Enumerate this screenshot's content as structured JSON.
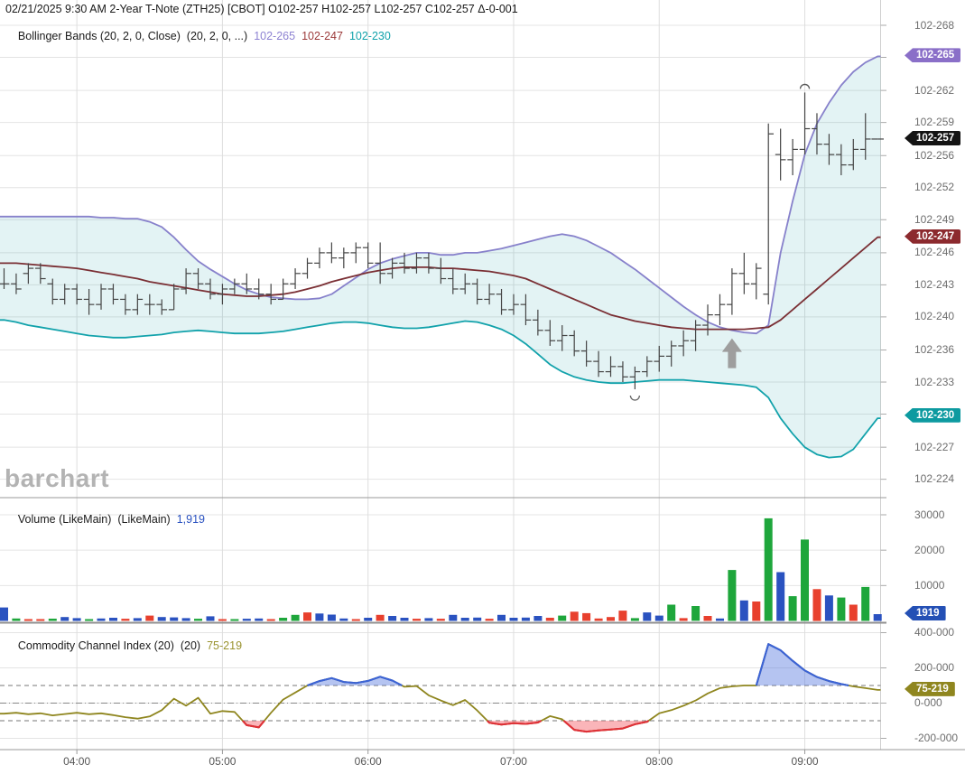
{
  "header": {
    "line1": "02/21/2025 9:30 AM 2-Year T-Note (ZTH25) [CBOT] O102-257 H102-257 L102-257 C102-257 Δ-0-001"
  },
  "legends": {
    "bollinger": {
      "label": "Bollinger Bands (20, 2, 0, Close)  (20, 2, 0, ...)",
      "upper": "102-265",
      "middle": "102-247",
      "lower": "102-230"
    },
    "volume": {
      "label": "Volume (LikeMain)  (LikeMain)",
      "value": "1,919"
    },
    "cci": {
      "label": "Commodity Channel Index (20)  (20)",
      "value": "75-219"
    }
  },
  "watermark": "barchart",
  "colors": {
    "band_upper": "#8781cb",
    "band_middle": "#7a2f34",
    "band_lower": "#12a2ab",
    "band_fill": "rgba(26,160,166,0.12)",
    "ohlc_bar": "#444444",
    "legend_upper": "#8d82d2",
    "legend_middle": "#9c3a3a",
    "legend_lower": "#12a2ab",
    "legend_volume": "#2a52c0",
    "legend_cci": "#99922e",
    "vol_up": "#1ea63b",
    "vol_down": "#e8402d",
    "vol_neutral": "#2a52c0",
    "cci_line": "#8f861f",
    "cci_above": "#3b63d6",
    "cci_below": "#e03038",
    "cci_fill_above": "rgba(90,125,225,0.45)",
    "cci_fill_below": "rgba(245,90,100,0.45)",
    "badge_upper": "#8a6fc8",
    "badge_last": "#141414",
    "badge_middle": "#8c2a2e",
    "badge_lower": "#0d9aa0",
    "badge_volume": "#2450b5",
    "badge_cci": "#8f861f",
    "marker_gray": "#9e9e9e"
  },
  "chart_data": {
    "type": "ohlc",
    "symbol": "2-Year T-Note (ZTH25) [CBOT]",
    "interval_minutes": 5,
    "x_axis": {
      "hour_labels": [
        {
          "label": "04:00",
          "i": 6
        },
        {
          "label": "05:00",
          "i": 18
        },
        {
          "label": "06:00",
          "i": 30
        },
        {
          "label": "07:00",
          "i": 42
        },
        {
          "label": "08:00",
          "i": 54
        },
        {
          "label": "09:00",
          "i": 66
        }
      ]
    },
    "price_pane": {
      "unit": "32nds above 102 (24.3 = 102-243)",
      "y_labels": [
        {
          "label": "102-268",
          "v": 26.8
        },
        {
          "label": "102-262",
          "v": 26.17
        },
        {
          "label": "102-259",
          "v": 25.86
        },
        {
          "label": "102-256",
          "v": 25.54
        },
        {
          "label": "102-252",
          "v": 25.23
        },
        {
          "label": "102-249",
          "v": 24.92
        },
        {
          "label": "102-246",
          "v": 24.6
        },
        {
          "label": "102-243",
          "v": 24.29
        },
        {
          "label": "102-240",
          "v": 23.98
        },
        {
          "label": "102-236",
          "v": 23.66
        },
        {
          "label": "102-233",
          "v": 23.35
        },
        {
          "label": "102-227",
          "v": 22.72
        },
        {
          "label": "102-224",
          "v": 22.41
        }
      ],
      "gridline_values": [
        26.8,
        26.49,
        26.17,
        25.86,
        25.54,
        25.23,
        24.92,
        24.6,
        24.29,
        23.98,
        23.66,
        23.35,
        23.04,
        22.72,
        22.41
      ],
      "badges": [
        {
          "label": "102-265",
          "v": 26.5,
          "color_key": "badge_upper"
        },
        {
          "label": "102-257",
          "v": 25.7,
          "color_key": "badge_last"
        },
        {
          "label": "102-247",
          "v": 24.75,
          "color_key": "badge_middle"
        },
        {
          "label": "102-230",
          "v": 23.02,
          "color_key": "badge_lower"
        }
      ],
      "bars": [
        [
          24.3,
          24.45,
          24.25,
          24.3
        ],
        [
          24.3,
          24.4,
          24.2,
          24.25
        ],
        [
          24.4,
          24.5,
          24.3,
          24.45
        ],
        [
          24.45,
          24.5,
          24.3,
          24.35
        ],
        [
          24.3,
          24.35,
          24.1,
          24.15
        ],
        [
          24.15,
          24.3,
          24.1,
          24.25
        ],
        [
          24.25,
          24.3,
          24.1,
          24.15
        ],
        [
          24.15,
          24.25,
          24.0,
          24.1
        ],
        [
          24.1,
          24.3,
          24.05,
          24.25
        ],
        [
          24.25,
          24.3,
          24.1,
          24.15
        ],
        [
          24.15,
          24.2,
          24.0,
          24.05
        ],
        [
          24.05,
          24.2,
          24.0,
          24.15
        ],
        [
          24.1,
          24.2,
          24.0,
          24.1
        ],
        [
          24.1,
          24.15,
          24.0,
          24.05
        ],
        [
          24.05,
          24.3,
          24.05,
          24.25
        ],
        [
          24.25,
          24.45,
          24.2,
          24.4
        ],
        [
          24.4,
          24.45,
          24.25,
          24.3
        ],
        [
          24.3,
          24.35,
          24.15,
          24.2
        ],
        [
          24.2,
          24.3,
          24.1,
          24.25
        ],
        [
          24.25,
          24.35,
          24.2,
          24.3
        ],
        [
          24.3,
          24.4,
          24.2,
          24.25
        ],
        [
          24.25,
          24.35,
          24.15,
          24.2
        ],
        [
          24.2,
          24.3,
          24.1,
          24.15
        ],
        [
          24.15,
          24.35,
          24.15,
          24.3
        ],
        [
          24.3,
          24.45,
          24.25,
          24.4
        ],
        [
          24.4,
          24.55,
          24.35,
          24.5
        ],
        [
          24.5,
          24.65,
          24.45,
          24.6
        ],
        [
          24.6,
          24.7,
          24.5,
          24.55
        ],
        [
          24.55,
          24.65,
          24.45,
          24.6
        ],
        [
          24.6,
          24.7,
          24.5,
          24.65
        ],
        [
          24.65,
          24.7,
          24.45,
          24.5
        ],
        [
          24.5,
          24.7,
          24.3,
          24.4
        ],
        [
          24.4,
          24.55,
          24.35,
          24.5
        ],
        [
          24.5,
          24.6,
          24.4,
          24.45
        ],
        [
          24.45,
          24.6,
          24.4,
          24.55
        ],
        [
          24.55,
          24.6,
          24.4,
          24.45
        ],
        [
          24.45,
          24.55,
          24.3,
          24.35
        ],
        [
          24.35,
          24.45,
          24.2,
          24.25
        ],
        [
          24.25,
          24.4,
          24.2,
          24.3
        ],
        [
          24.3,
          24.35,
          24.1,
          24.15
        ],
        [
          24.15,
          24.3,
          24.1,
          24.2
        ],
        [
          24.2,
          24.25,
          24.0,
          24.05
        ],
        [
          24.05,
          24.2,
          24.0,
          24.1
        ],
        [
          24.1,
          24.2,
          23.9,
          23.95
        ],
        [
          23.95,
          24.05,
          23.8,
          23.85
        ],
        [
          23.85,
          23.95,
          23.7,
          23.75
        ],
        [
          23.75,
          23.9,
          23.65,
          23.8
        ],
        [
          23.8,
          23.85,
          23.6,
          23.65
        ],
        [
          23.65,
          23.75,
          23.5,
          23.55
        ],
        [
          23.55,
          23.65,
          23.4,
          23.45
        ],
        [
          23.45,
          23.6,
          23.4,
          23.5
        ],
        [
          23.5,
          23.55,
          23.35,
          23.4
        ],
        [
          23.4,
          23.5,
          23.28,
          23.45
        ],
        [
          23.45,
          23.6,
          23.4,
          23.55
        ],
        [
          23.55,
          23.7,
          23.45,
          23.6
        ],
        [
          23.6,
          23.75,
          23.5,
          23.7
        ],
        [
          23.7,
          23.85,
          23.6,
          23.75
        ],
        [
          23.75,
          23.95,
          23.65,
          23.9
        ],
        [
          23.9,
          24.1,
          23.8,
          24.0
        ],
        [
          24.0,
          24.2,
          23.9,
          24.1
        ],
        [
          24.1,
          24.45,
          24.0,
          24.4
        ],
        [
          24.4,
          24.6,
          24.2,
          24.3
        ],
        [
          24.3,
          24.5,
          24.15,
          24.45
        ],
        [
          24.2,
          25.85,
          24.1,
          25.75
        ],
        [
          25.55,
          25.8,
          25.3,
          25.5
        ],
        [
          25.5,
          25.7,
          25.35,
          25.6
        ],
        [
          25.6,
          26.15,
          25.55,
          25.8
        ],
        [
          25.8,
          25.95,
          25.55,
          25.65
        ],
        [
          25.65,
          25.75,
          25.45,
          25.55
        ],
        [
          25.55,
          25.65,
          25.35,
          25.45
        ],
        [
          25.45,
          25.7,
          25.4,
          25.6
        ],
        [
          25.6,
          25.95,
          25.5,
          25.7
        ],
        [
          25.7,
          25.7,
          25.7,
          25.7
        ]
      ],
      "bollinger_upper": [
        24.95,
        24.95,
        24.95,
        24.95,
        24.95,
        24.95,
        24.95,
        24.95,
        24.94,
        24.94,
        24.93,
        24.93,
        24.9,
        24.85,
        24.75,
        24.63,
        24.52,
        24.44,
        24.37,
        24.3,
        24.24,
        24.2,
        24.17,
        24.16,
        24.15,
        24.15,
        24.16,
        24.2,
        24.28,
        24.36,
        24.44,
        24.5,
        24.54,
        24.57,
        24.6,
        24.6,
        24.58,
        24.58,
        24.6,
        24.6,
        24.62,
        24.64,
        24.67,
        24.7,
        24.73,
        24.76,
        24.78,
        24.76,
        24.72,
        24.66,
        24.6,
        24.52,
        24.44,
        24.35,
        24.26,
        24.17,
        24.08,
        24.0,
        23.93,
        23.88,
        23.85,
        23.83,
        23.82,
        23.9,
        24.6,
        25.1,
        25.55,
        25.85,
        26.05,
        26.22,
        26.35,
        26.44,
        26.5
      ],
      "bollinger_middle": [
        24.5,
        24.5,
        24.49,
        24.48,
        24.47,
        24.46,
        24.45,
        24.43,
        24.41,
        24.39,
        24.37,
        24.35,
        24.32,
        24.3,
        24.28,
        24.26,
        24.24,
        24.22,
        24.2,
        24.19,
        24.18,
        24.18,
        24.19,
        24.2,
        24.22,
        24.25,
        24.28,
        24.32,
        24.35,
        24.38,
        24.41,
        24.43,
        24.45,
        24.46,
        24.46,
        24.46,
        24.45,
        24.45,
        24.44,
        24.43,
        24.42,
        24.4,
        24.38,
        24.35,
        24.3,
        24.25,
        24.2,
        24.15,
        24.1,
        24.05,
        24.0,
        23.97,
        23.94,
        23.92,
        23.9,
        23.88,
        23.87,
        23.86,
        23.86,
        23.86,
        23.86,
        23.86,
        23.87,
        23.88,
        23.95,
        24.05,
        24.15,
        24.25,
        24.35,
        24.45,
        24.55,
        24.65,
        24.75
      ],
      "bollinger_lower": [
        23.95,
        23.93,
        23.9,
        23.88,
        23.86,
        23.84,
        23.82,
        23.8,
        23.79,
        23.78,
        23.78,
        23.79,
        23.8,
        23.81,
        23.83,
        23.84,
        23.85,
        23.84,
        23.83,
        23.82,
        23.82,
        23.82,
        23.83,
        23.84,
        23.86,
        23.88,
        23.9,
        23.92,
        23.93,
        23.93,
        23.92,
        23.9,
        23.88,
        23.87,
        23.87,
        23.88,
        23.9,
        23.92,
        23.94,
        23.93,
        23.9,
        23.86,
        23.8,
        23.72,
        23.62,
        23.52,
        23.45,
        23.4,
        23.37,
        23.35,
        23.34,
        23.34,
        23.35,
        23.36,
        23.37,
        23.37,
        23.37,
        23.36,
        23.35,
        23.34,
        23.33,
        23.32,
        23.3,
        23.2,
        23.0,
        22.85,
        22.72,
        22.65,
        22.62,
        22.63,
        22.7,
        22.85,
        23.0
      ],
      "markers": [
        {
          "type": "circle-low",
          "i": 52
        },
        {
          "type": "arrow-up",
          "i": 60
        },
        {
          "type": "arc-high",
          "i": 66
        }
      ]
    },
    "volume_pane": {
      "y_labels": [
        {
          "label": "30000",
          "v": 30000
        },
        {
          "label": "20000",
          "v": 20000
        },
        {
          "label": "10000",
          "v": 10000
        }
      ],
      "badge": {
        "label": "1919",
        "v": 1919,
        "color_key": "badge_volume"
      },
      "bars": [
        [
          3800,
          "b"
        ],
        [
          700,
          "g"
        ],
        [
          500,
          "r"
        ],
        [
          450,
          "r"
        ],
        [
          650,
          "g"
        ],
        [
          1100,
          "b"
        ],
        [
          800,
          "b"
        ],
        [
          500,
          "g"
        ],
        [
          700,
          "b"
        ],
        [
          900,
          "b"
        ],
        [
          600,
          "r"
        ],
        [
          800,
          "b"
        ],
        [
          1500,
          "r"
        ],
        [
          1100,
          "b"
        ],
        [
          1000,
          "b"
        ],
        [
          800,
          "b"
        ],
        [
          600,
          "g"
        ],
        [
          1300,
          "b"
        ],
        [
          500,
          "r"
        ],
        [
          400,
          "g"
        ],
        [
          600,
          "b"
        ],
        [
          700,
          "b"
        ],
        [
          500,
          "r"
        ],
        [
          900,
          "g"
        ],
        [
          1700,
          "g"
        ],
        [
          2400,
          "r"
        ],
        [
          2100,
          "b"
        ],
        [
          1800,
          "b"
        ],
        [
          700,
          "b"
        ],
        [
          500,
          "r"
        ],
        [
          900,
          "b"
        ],
        [
          1700,
          "r"
        ],
        [
          1400,
          "b"
        ],
        [
          900,
          "b"
        ],
        [
          600,
          "r"
        ],
        [
          800,
          "b"
        ],
        [
          600,
          "r"
        ],
        [
          1700,
          "b"
        ],
        [
          900,
          "b"
        ],
        [
          950,
          "b"
        ],
        [
          600,
          "r"
        ],
        [
          1700,
          "b"
        ],
        [
          900,
          "b"
        ],
        [
          950,
          "b"
        ],
        [
          1400,
          "b"
        ],
        [
          900,
          "r"
        ],
        [
          1500,
          "g"
        ],
        [
          2600,
          "r"
        ],
        [
          2200,
          "r"
        ],
        [
          700,
          "r"
        ],
        [
          1100,
          "r"
        ],
        [
          2900,
          "r"
        ],
        [
          800,
          "g"
        ],
        [
          2400,
          "b"
        ],
        [
          1500,
          "b"
        ],
        [
          4600,
          "g"
        ],
        [
          800,
          "r"
        ],
        [
          4200,
          "g"
        ],
        [
          1400,
          "r"
        ],
        [
          700,
          "b"
        ],
        [
          14400,
          "g"
        ],
        [
          5800,
          "b"
        ],
        [
          5500,
          "r"
        ],
        [
          29000,
          "g"
        ],
        [
          13800,
          "b"
        ],
        [
          7000,
          "g"
        ],
        [
          23000,
          "g"
        ],
        [
          9000,
          "r"
        ],
        [
          7200,
          "b"
        ],
        [
          6600,
          "g"
        ],
        [
          4600,
          "r"
        ],
        [
          9600,
          "g"
        ],
        [
          1919,
          "b"
        ]
      ]
    },
    "cci_pane": {
      "y_labels": [
        {
          "label": "400-000",
          "v": 400
        },
        {
          "label": "200-000",
          "v": 200
        },
        {
          "label": "0-000",
          "v": 0
        },
        {
          "label": "-200-000",
          "v": -200
        }
      ],
      "badge": {
        "label": "75-219",
        "v": 75.219,
        "color_key": "badge_cci"
      },
      "upper_threshold": 100,
      "lower_threshold": -100,
      "values": [
        -60,
        -55,
        -63,
        -58,
        -70,
        -62,
        -55,
        -63,
        -58,
        -68,
        -80,
        -88,
        -76,
        -40,
        25,
        -15,
        30,
        -60,
        -45,
        -50,
        -125,
        -138,
        -55,
        20,
        60,
        100,
        125,
        142,
        120,
        114,
        126,
        150,
        128,
        93,
        97,
        44,
        15,
        -12,
        18,
        -42,
        -112,
        -122,
        -114,
        -118,
        -110,
        -74,
        -92,
        -152,
        -162,
        -155,
        -150,
        -144,
        -120,
        -106,
        -58,
        -40,
        -15,
        15,
        55,
        85,
        95,
        100,
        100,
        335,
        300,
        240,
        185,
        148,
        125,
        108,
        95,
        85,
        75
      ]
    }
  }
}
